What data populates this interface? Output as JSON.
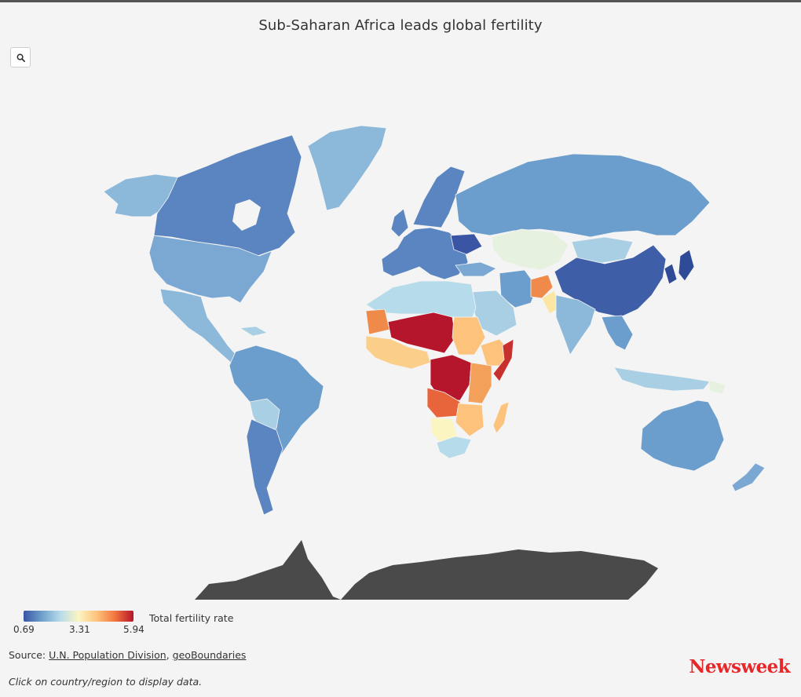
{
  "title": "Sub-Saharan Africa leads global fertility",
  "toolbar": {
    "search_icon": "search-icon"
  },
  "legend": {
    "title": "Total fertility rate",
    "min_label": "0.69",
    "mid_label": "3.31",
    "max_label": "5.94",
    "gradient": [
      "#3a55a4",
      "#6fa0cc",
      "#b6dbea",
      "#fbf5c2",
      "#fdc27c",
      "#f2743e",
      "#b5162b"
    ]
  },
  "colors": {
    "background": "#f4f4f4",
    "land_blue": "#6b9ecc",
    "no_data": "#4a4a4a",
    "brand": "#e8272b"
  },
  "source": {
    "prefix": "Source: ",
    "link1": "U.N. Population Division",
    "separator": ", ",
    "link2": "geoBoundaries"
  },
  "note": "Click on country/region to display data.",
  "brand": "Newsweek"
}
